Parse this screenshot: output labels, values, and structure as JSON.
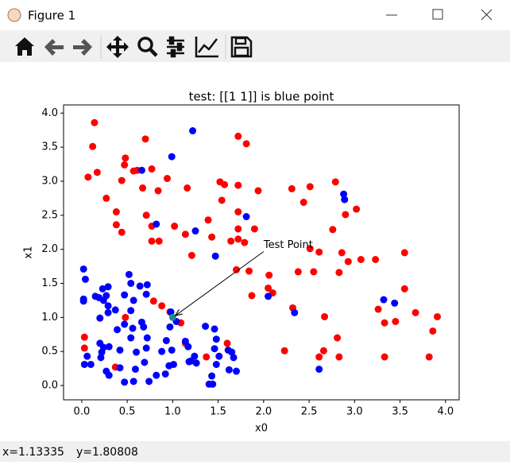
{
  "window": {
    "title": "Figure 1"
  },
  "status_bar": {
    "x": "x=1.13335",
    "y": "y=1.80808"
  },
  "chart_data": {
    "type": "scatter",
    "title": "test: [[1 1]] is blue point",
    "xlabel": "x0",
    "ylabel": "x1",
    "xlim": [
      -0.2,
      4.15
    ],
    "ylim": [
      -0.21,
      4.12
    ],
    "xticks": [
      {
        "value": 0,
        "label": "0.0"
      },
      {
        "value": 0.5,
        "label": "0.5"
      },
      {
        "value": 1,
        "label": "1.0"
      },
      {
        "value": 1.5,
        "label": "1.5"
      },
      {
        "value": 2,
        "label": "2.0"
      },
      {
        "value": 2.5,
        "label": "2.5"
      },
      {
        "value": 3,
        "label": "3.0"
      },
      {
        "value": 3.5,
        "label": "3.5"
      },
      {
        "value": 4,
        "label": "4.0"
      }
    ],
    "yticks": [
      {
        "value": 0,
        "label": "0.0"
      },
      {
        "value": 0.5,
        "label": "0.5"
      },
      {
        "value": 1,
        "label": "1.0"
      },
      {
        "value": 1.5,
        "label": "1.5"
      },
      {
        "value": 2,
        "label": "2.0"
      },
      {
        "value": 2.5,
        "label": "2.5"
      },
      {
        "value": 3,
        "label": "3.0"
      },
      {
        "value": 3.5,
        "label": "3.5"
      },
      {
        "value": 4,
        "label": "4.0"
      }
    ],
    "grid": false,
    "series": [
      {
        "color": "#ff0000",
        "x": [
          0.14,
          0.12,
          0.07,
          0.17,
          0.27,
          0.38,
          0.38,
          0.44,
          0.48,
          0.47,
          0.44,
          0.57,
          0.61,
          0.7,
          0.77,
          0.67,
          0.71,
          0.77,
          0.77,
          0.85,
          0.84,
          0.94,
          1.02,
          1.14,
          1.16,
          1.21,
          1.39,
          1.43,
          1.54,
          1.52,
          1.57,
          1.72,
          1.81,
          1.72,
          1.72,
          1.72,
          1.64,
          1.72,
          1.79,
          1.9,
          1.94,
          1.7,
          1.84,
          1.87,
          2.06,
          2.05,
          2.1,
          2.31,
          2.44,
          2.51,
          2.51,
          2.61,
          2.38,
          2.55,
          2.32,
          2.76,
          2.79,
          2.9,
          3.02,
          2.86,
          2.93,
          2.83,
          3.07,
          3.23,
          3.55,
          3.55,
          3.26,
          3.33,
          3.45,
          3.67,
          3.91,
          3.86,
          3.82,
          3.33,
          2.67,
          2.81,
          2.83,
          2.66,
          2.61,
          2.23,
          1.6,
          1.37,
          1.14,
          1.09,
          0.97,
          0.88,
          0.79,
          0.48,
          0.03,
          0.03,
          0.37
        ],
        "y": [
          3.86,
          3.51,
          3.06,
          3.13,
          2.75,
          2.55,
          2.36,
          2.25,
          3.34,
          3.24,
          3.01,
          3.15,
          3.16,
          3.62,
          3.18,
          2.9,
          2.5,
          2.34,
          2.12,
          2.12,
          2.86,
          3.04,
          2.34,
          2.22,
          2.9,
          1.91,
          2.43,
          2.18,
          2.72,
          2.99,
          2.95,
          3.66,
          3.55,
          2.94,
          2.55,
          2.3,
          2.12,
          2.15,
          2.1,
          2.3,
          2.86,
          1.7,
          1.68,
          1.32,
          1.62,
          1.43,
          1.36,
          2.89,
          2.69,
          2.92,
          2.01,
          1.96,
          1.67,
          1.67,
          1.14,
          2.29,
          2.99,
          2.51,
          2.59,
          1.95,
          1.82,
          1.66,
          1.85,
          1.85,
          1.95,
          1.42,
          1.12,
          0.92,
          0.94,
          1.07,
          1.01,
          0.8,
          0.42,
          0.42,
          1.01,
          0.7,
          0.42,
          0.51,
          0.42,
          0.51,
          0.62,
          0.42,
          0.62,
          0.92,
          1.08,
          1.17,
          1.24,
          1.0,
          0.71,
          0.55,
          0.27
        ]
      },
      {
        "color": "#0000ff",
        "x": [
          1.22,
          0.99,
          0.66,
          0.82,
          1.25,
          1.81,
          1.47,
          2.88,
          2.89,
          2.05,
          2.34,
          3.32,
          3.44,
          2.61,
          0.02,
          0.04,
          0.02,
          0.02,
          0.15,
          0.19,
          0.23,
          0.24,
          0.29,
          0.27,
          0.29,
          0.29,
          0.2,
          0.37,
          0.47,
          0.52,
          0.54,
          0.64,
          0.72,
          0.71,
          0.57,
          0.54,
          0.47,
          0.39,
          0.56,
          0.66,
          0.68,
          0.54,
          0.42,
          0.2,
          0.24,
          0.3,
          0.22,
          0.21,
          0.06,
          0.03,
          0.1,
          0.27,
          0.3,
          0.42,
          0.47,
          0.59,
          0.6,
          0.71,
          0.72,
          0.69,
          0.57,
          0.74,
          0.82,
          0.88,
          0.93,
          0.97,
          0.98,
          1.04,
          0.96,
          1.01,
          0.92,
          0.99,
          1.14,
          1.17,
          1.2,
          1.24,
          1.26,
          1.18,
          1.36,
          1.46,
          1.48,
          1.46,
          1.51,
          1.48,
          1.43,
          1.4,
          1.44,
          1.61,
          1.65,
          1.62,
          1.7,
          1.67
        ],
        "y": [
          3.74,
          3.36,
          3.16,
          2.37,
          2.27,
          2.48,
          1.9,
          2.81,
          2.73,
          1.31,
          1.07,
          1.26,
          1.21,
          0.24,
          1.71,
          1.56,
          1.27,
          1.24,
          1.31,
          1.29,
          1.42,
          1.25,
          1.45,
          1.32,
          1.17,
          1.07,
          0.99,
          1.11,
          1.33,
          1.63,
          1.5,
          1.46,
          1.48,
          1.34,
          1.25,
          1.1,
          0.9,
          0.82,
          0.84,
          0.93,
          0.86,
          0.7,
          0.52,
          0.62,
          0.56,
          0.57,
          0.49,
          0.41,
          0.43,
          0.31,
          0.31,
          0.21,
          0.15,
          0.26,
          0.05,
          0.24,
          0.49,
          0.55,
          0.7,
          0.34,
          0.06,
          0.06,
          0.15,
          0.5,
          0.66,
          0.86,
          1.08,
          0.94,
          0.29,
          0.31,
          0.17,
          0.52,
          0.65,
          0.57,
          0.36,
          0.43,
          0.33,
          0.35,
          0.87,
          0.83,
          0.68,
          0.54,
          0.43,
          0.31,
          0.14,
          0.02,
          0.02,
          0.52,
          0.49,
          0.23,
          0.21,
          0.41
        ]
      },
      {
        "color": "#1f8a8f",
        "x": [
          1
        ],
        "y": [
          1
        ]
      }
    ],
    "annotation": {
      "text": "Test Point",
      "xy": [
        1,
        1
      ],
      "xytext": [
        2.0,
        2.06
      ]
    }
  }
}
